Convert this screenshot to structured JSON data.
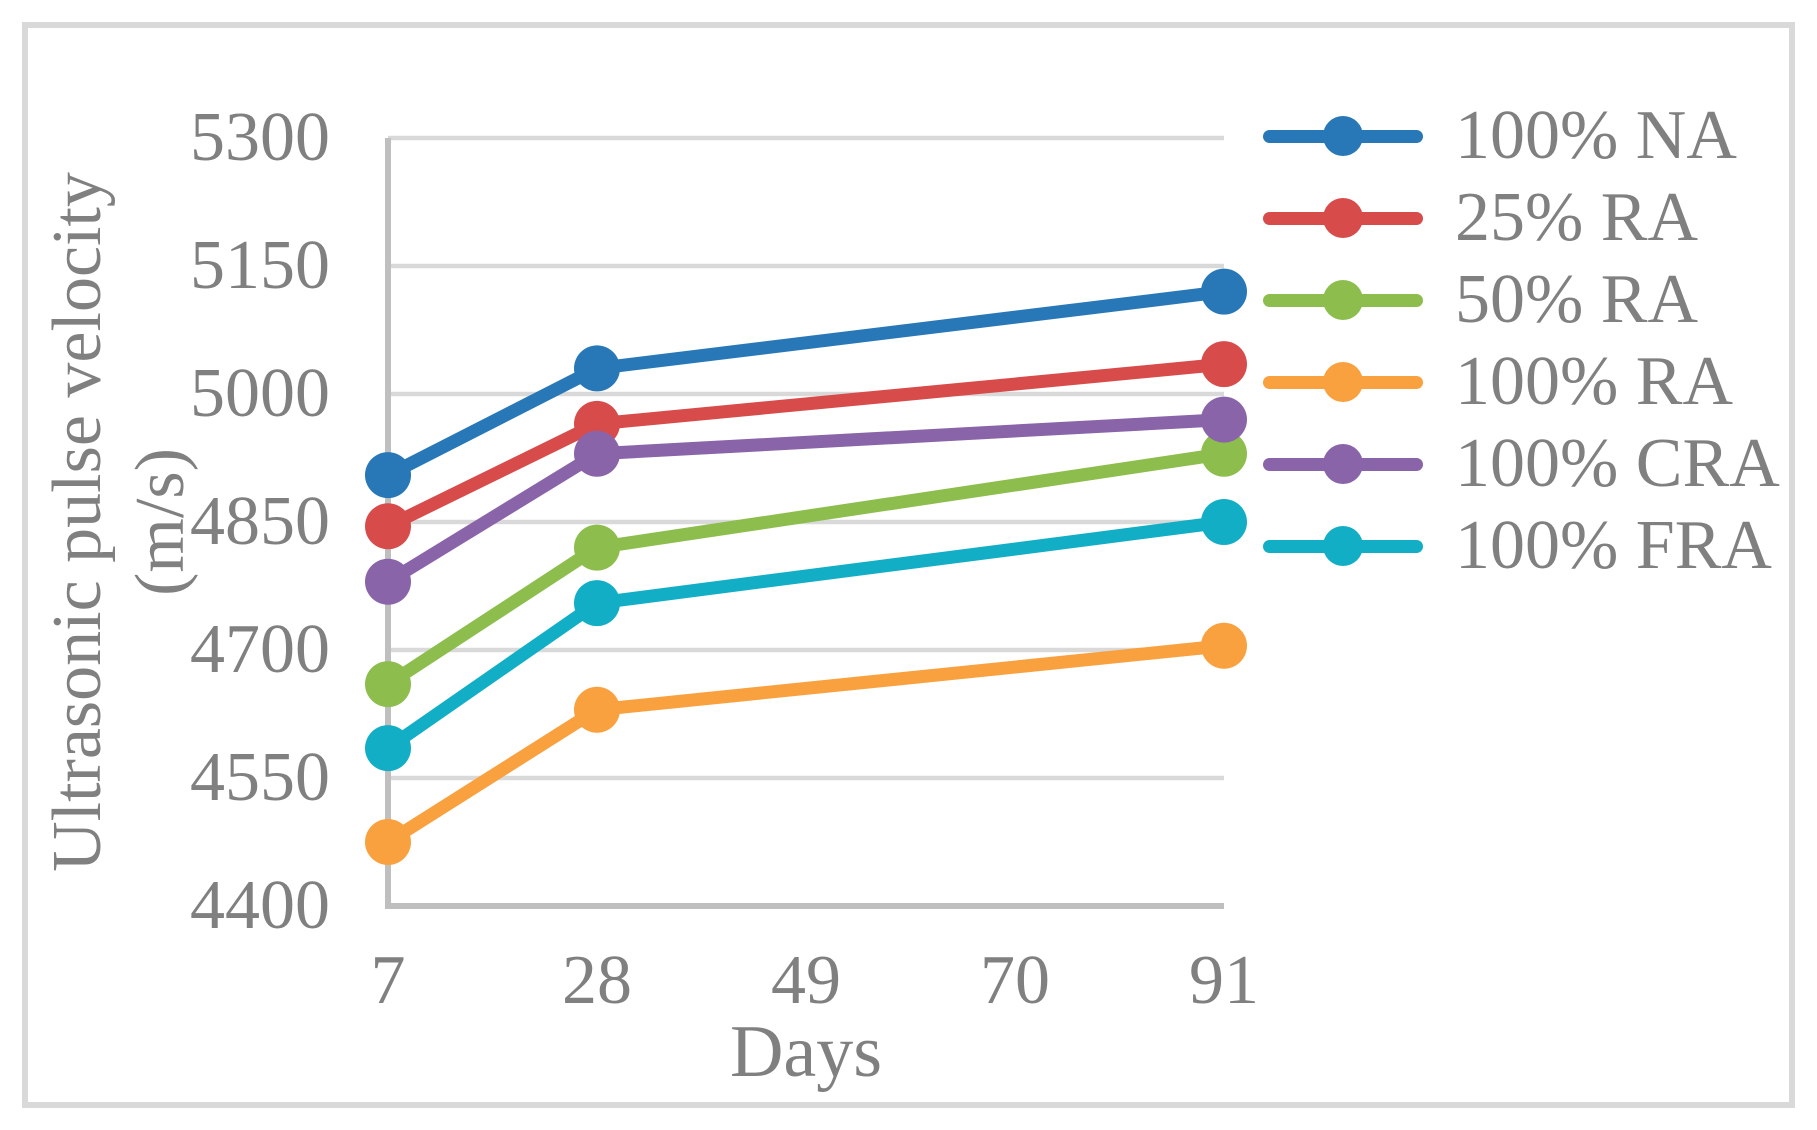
{
  "chart_data": {
    "type": "line",
    "title": "",
    "xlabel": "Days",
    "ylabel": "Ultrasonic pulse velocity (m/s)",
    "ylabel_lines": [
      "Ultrasonic pulse velocity",
      "(m/s)"
    ],
    "x": [
      7,
      28,
      91
    ],
    "xticks": [
      7,
      28,
      49,
      70,
      91
    ],
    "yticks": [
      4400,
      4550,
      4700,
      4850,
      5000,
      5150,
      5300
    ],
    "xlim": [
      7,
      91
    ],
    "ylim": [
      4400,
      5300
    ],
    "grid": true,
    "legend_position": "right-top",
    "series": [
      {
        "name": "100% NA",
        "color": "#2878B8",
        "values": [
          4905,
          5030,
          5120
        ]
      },
      {
        "name": "25% RA",
        "color": "#D84B4B",
        "values": [
          4845,
          4965,
          5035
        ]
      },
      {
        "name": "50% RA",
        "color": "#8DBE4D",
        "values": [
          4660,
          4820,
          4930
        ]
      },
      {
        "name": "100% RA",
        "color": "#F9A13F",
        "values": [
          4475,
          4630,
          4705
        ]
      },
      {
        "name": "100% CRA",
        "color": "#8A64A8",
        "values": [
          4780,
          4930,
          4970
        ]
      },
      {
        "name": "100% FRA",
        "color": "#12AEC6",
        "values": [
          4585,
          4755,
          4850
        ]
      }
    ],
    "marker": "circle",
    "text_color": "#808080",
    "grid_color": "#D9D9D9",
    "axis_line_color": "#BFBFBF",
    "figure_border_color": "#D9D9D9"
  }
}
